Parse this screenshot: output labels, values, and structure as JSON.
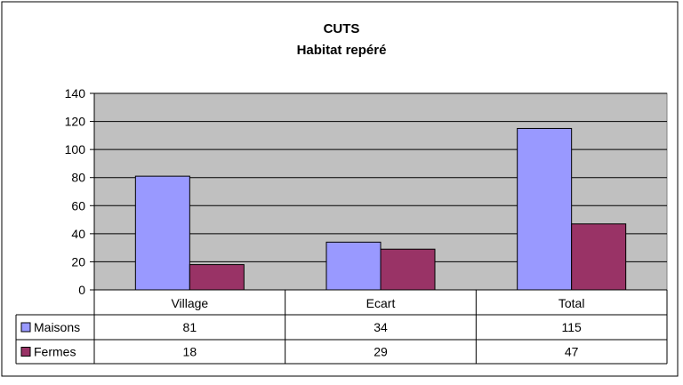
{
  "chart_data": {
    "type": "bar",
    "title": "CUTS",
    "subtitle": "Habitat repéré",
    "categories": [
      "Village",
      "Ecart",
      "Total"
    ],
    "series": [
      {
        "name": "Maisons",
        "values": [
          81,
          34,
          115
        ],
        "color": "#9999ff"
      },
      {
        "name": "Fermes",
        "values": [
          18,
          29,
          47
        ],
        "color": "#993366"
      }
    ],
    "ylim": [
      0,
      140
    ],
    "yticks": [
      0,
      20,
      40,
      60,
      80,
      100,
      120,
      140
    ],
    "grid": true,
    "plot_background": "#c0c0c0",
    "legend": "data-table"
  }
}
